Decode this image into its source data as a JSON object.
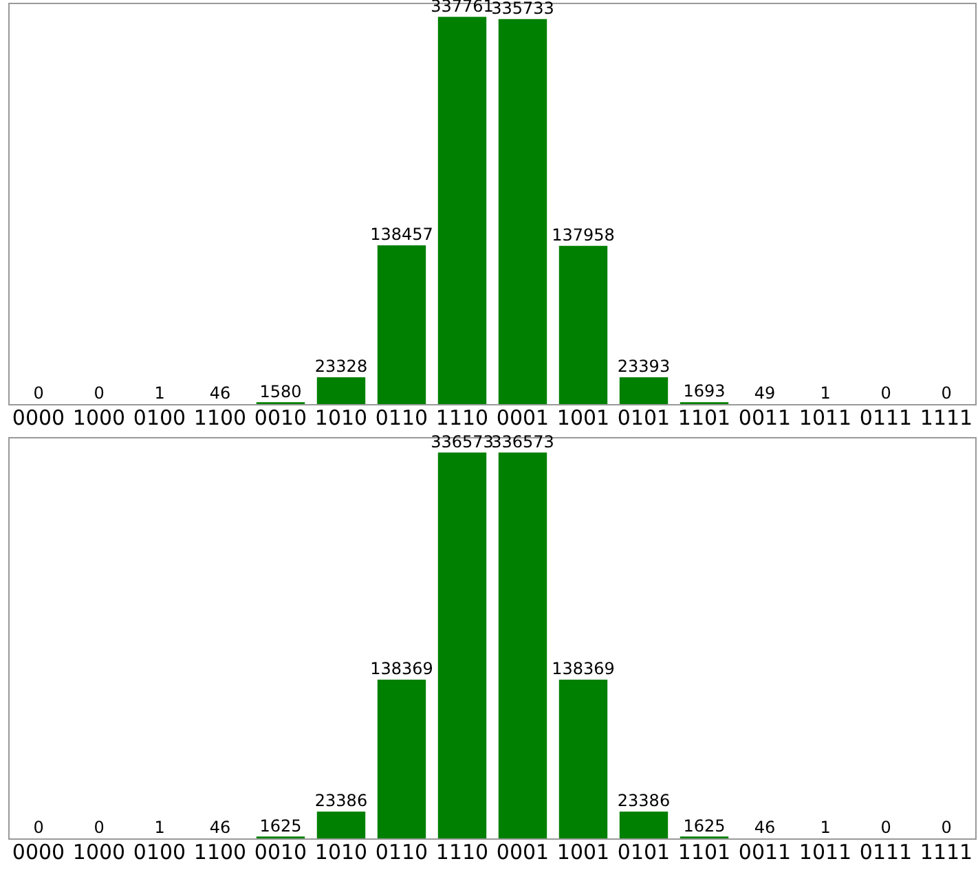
{
  "chart_data": [
    {
      "type": "bar",
      "categories": [
        "0000",
        "1000",
        "0100",
        "1100",
        "0010",
        "1010",
        "0110",
        "1110",
        "0001",
        "1001",
        "0101",
        "1101",
        "0011",
        "1011",
        "0111",
        "1111"
      ],
      "values": [
        0,
        0,
        1,
        46,
        1580,
        23328,
        138457,
        337761,
        335733,
        137958,
        23393,
        1693,
        49,
        1,
        0,
        0
      ],
      "color": "#008000",
      "data_labels": true,
      "grid": false,
      "legend": false
    },
    {
      "type": "bar",
      "categories": [
        "0000",
        "1000",
        "0100",
        "1100",
        "0010",
        "1010",
        "0110",
        "1110",
        "0001",
        "1001",
        "0101",
        "1101",
        "0011",
        "1011",
        "0111",
        "1111"
      ],
      "values": [
        0,
        0,
        1,
        46,
        1625,
        23386,
        138369,
        336573,
        336573,
        138369,
        23386,
        1625,
        46,
        1,
        0,
        0
      ],
      "color": "#008000",
      "data_labels": true,
      "grid": false,
      "legend": false
    }
  ]
}
